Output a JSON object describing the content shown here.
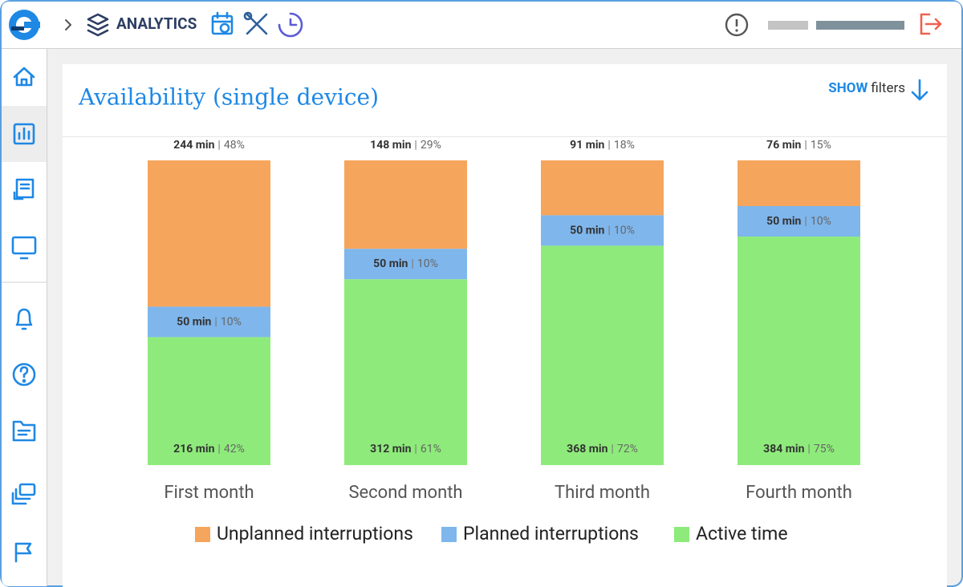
{
  "header": {
    "section": "ANALYTICS"
  },
  "filters": {
    "show": "SHOW",
    "label": "filters"
  },
  "chart_data": {
    "type": "stacked_bar",
    "title": "Availability (single device)",
    "categories": [
      "First month",
      "Second month",
      "Third month",
      "Fourth month"
    ],
    "ylim": [
      0,
      100
    ],
    "label_separator": "|",
    "series": [
      {
        "name": "Unplanned interruptions",
        "color": "#f6a55c",
        "values": [
          48,
          29,
          18,
          15
        ],
        "value_labels": [
          "48%",
          "29%",
          "18%",
          "15%"
        ],
        "minute_labels": [
          "244 min",
          "148 min",
          "91 min",
          "76 min"
        ]
      },
      {
        "name": "Planned interruptions",
        "color": "#7fb6ec",
        "values": [
          10,
          10,
          10,
          10
        ],
        "value_labels": [
          "10%",
          "10%",
          "10%",
          "10%"
        ],
        "minute_labels": [
          "50 min",
          "50 min",
          "50 min",
          "50 min"
        ]
      },
      {
        "name": "Active time",
        "color": "#8eeb7b",
        "values": [
          42,
          61,
          72,
          75
        ],
        "value_labels": [
          "42%",
          "61%",
          "72%",
          "75%"
        ],
        "minute_labels": [
          "216 min",
          "312 min",
          "368 min",
          "384 min"
        ]
      }
    ],
    "legend": "bottom"
  }
}
